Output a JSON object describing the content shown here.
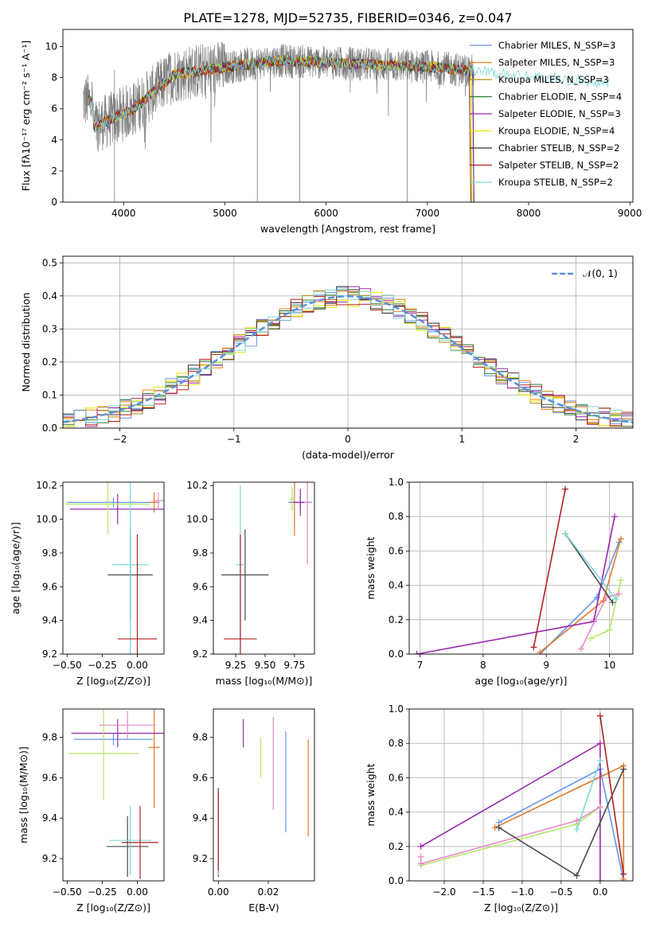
{
  "figure": {
    "title": "PLATE=1278, MJD=52735, FIBERID=0346, z=0.047"
  },
  "colors": {
    "series": [
      "#6495ed",
      "#ff7f0e",
      "#b8860b",
      "#2e7d32",
      "#9c27b0",
      "#e6e600",
      "#333333",
      "#b22222",
      "#7fd8d8"
    ],
    "params": [
      "#6495ed",
      "#e07b2b",
      "#9c27b0",
      "#b5e86b",
      "#e889c8",
      "#4a4a4a",
      "#7fd8d8",
      "#b22222"
    ],
    "obs": "#808080"
  },
  "chart_data": [
    {
      "id": "spectrum",
      "type": "line",
      "xlabel": "wavelength [Angstrom, rest frame]",
      "ylabel": "Flux [fλ10⁻¹⁷ erg cm⁻² s⁻¹ A⁻¹]",
      "xlim": [
        3400,
        9030
      ],
      "ylim": [
        0,
        11.1
      ],
      "xticks": [
        "4000",
        "5000",
        "6000",
        "7000",
        "8000",
        "9000"
      ],
      "yticks": [
        "0",
        "2",
        "4",
        "6",
        "8",
        "10"
      ],
      "legend_position": "upper-right",
      "series": [
        {
          "name": "Chabrier MILES, N_SSP=3"
        },
        {
          "name": "Salpeter MILES, N_SSP=3"
        },
        {
          "name": "Kroupa MILES, N_SSP=3"
        },
        {
          "name": "Chabrier ELODIE, N_SSP=4"
        },
        {
          "name": "Salpeter ELODIE, N_SSP=3"
        },
        {
          "name": "Kroupa ELODIE, N_SSP=4"
        },
        {
          "name": "Chabrier STELIB, N_SSP=2"
        },
        {
          "name": "Salpeter STELIB, N_SSP=2"
        },
        {
          "name": "Kroupa STELIB, N_SSP=2"
        }
      ],
      "grid": false
    },
    {
      "id": "residuals",
      "type": "bar",
      "xlabel": "(data-model)/error",
      "ylabel": "Normed distribution",
      "xlim": [
        -2.5,
        2.5
      ],
      "ylim": [
        0,
        0.52
      ],
      "xticks": [
        "−2",
        "−1",
        "0",
        "1",
        "2"
      ],
      "yticks": [
        "0.0",
        "0.1",
        "0.2",
        "0.3",
        "0.4",
        "0.5"
      ],
      "legend": "𝒩(0, 1)",
      "legend_position": "upper-right",
      "grid": true
    },
    {
      "id": "age_vs_Z",
      "type": "scatter",
      "xlabel": "Z [log₁₀(Z/Z⊙)]",
      "ylabel": "age  [log₁₀(age/yr)]",
      "xlim": [
        -0.53,
        0.19
      ],
      "ylim": [
        9.2,
        10.22
      ],
      "xticks": [
        "−0.50",
        "−0.25",
        "0.00"
      ],
      "yticks": [
        "9.2",
        "9.4",
        "9.6",
        "9.8",
        "10.0",
        "10.2"
      ],
      "points": [
        {
          "x": -0.17,
          "xerr": 0.33,
          "y": 10.1,
          "yerr": 0.03
        },
        {
          "x": 0.12,
          "xerr": 0.03,
          "y": 10.1,
          "yerr": 0.06
        },
        {
          "x": -0.14,
          "xerr": 0.34,
          "y": 10.06,
          "yerr": 0.09
        },
        {
          "x": -0.21,
          "xerr": 0.3,
          "y": 10.09,
          "yerr": 0.18
        },
        {
          "x": 0.15,
          "xerr": 0.04,
          "y": 10.11,
          "yerr": 0.05
        },
        {
          "x": -0.05,
          "xerr": 0.16,
          "y": 9.67,
          "yerr": 0.27
        },
        {
          "x": -0.05,
          "xerr": 0.13,
          "y": 9.73,
          "yerr": 0.55
        },
        {
          "x": 0.0,
          "xerr": 0.14,
          "y": 9.29,
          "yerr": 0.62
        }
      ]
    },
    {
      "id": "age_vs_mass",
      "type": "scatter",
      "xlabel": "mass [log₁₀(M/M⊙)]",
      "ylabel": "",
      "xlim": [
        9.06,
        9.92
      ],
      "ylim": [
        9.2,
        10.22
      ],
      "xticks": [
        "9.25",
        "9.50",
        "9.75"
      ],
      "yticks": [
        "9.2",
        "9.4",
        "9.6",
        "9.8",
        "10.0",
        "10.2"
      ],
      "points": [
        {
          "x": 9.8,
          "xerr": 0.1,
          "y": 10.1,
          "yerr": 0.04
        },
        {
          "x": 9.75,
          "xerr": 0.02,
          "y": 10.1,
          "yerr": 0.2
        },
        {
          "x": 9.8,
          "xerr": 0.08,
          "y": 10.1,
          "yerr": 0.08
        },
        {
          "x": 9.73,
          "xerr": 0.02,
          "y": 10.12,
          "yerr": 0.07
        },
        {
          "x": 9.86,
          "xerr": 0.03,
          "y": 10.1,
          "yerr": 0.37
        },
        {
          "x": 9.33,
          "xerr": 0.2,
          "y": 9.67,
          "yerr": 0.27
        },
        {
          "x": 9.29,
          "xerr": 0.04,
          "y": 9.73,
          "yerr": 0.47
        },
        {
          "x": 9.29,
          "xerr": 0.14,
          "y": 9.29,
          "yerr": 0.62
        }
      ]
    },
    {
      "id": "weight_vs_age",
      "type": "line",
      "xlabel": "age  [log₁₀(age/yr)]",
      "ylabel": "mass weight",
      "xlim": [
        6.83,
        10.37
      ],
      "ylim": [
        0,
        1.0
      ],
      "xticks": [
        "7",
        "8",
        "9",
        "10"
      ],
      "yticks": [
        "0.0",
        "0.2",
        "0.4",
        "0.6",
        "0.8",
        "1.0"
      ],
      "grid": true,
      "series": [
        {
          "x": [
            8.9,
            9.8,
            10.15
          ],
          "y": [
            0.0,
            0.33,
            0.65
          ]
        },
        {
          "x": [
            8.9,
            9.9,
            10.18
          ],
          "y": [
            0.01,
            0.31,
            0.67
          ]
        },
        {
          "x": [
            6.95,
            9.75,
            10.08
          ],
          "y": [
            0.0,
            0.19,
            0.8
          ]
        },
        {
          "x": [
            9.7,
            10.0,
            10.18
          ],
          "y": [
            0.09,
            0.14,
            0.43
          ]
        },
        {
          "x": [
            9.55,
            9.95,
            10.15
          ],
          "y": [
            0.03,
            0.33,
            0.35
          ]
        },
        {
          "x": [
            9.3,
            10.05
          ],
          "y": [
            0.7,
            0.3
          ]
        },
        {
          "x": [
            9.3,
            10.1
          ],
          "y": [
            0.7,
            0.32
          ]
        },
        {
          "x": [
            8.8,
            9.3
          ],
          "y": [
            0.04,
            0.96
          ]
        }
      ]
    },
    {
      "id": "mass_vs_Z",
      "type": "scatter",
      "xlabel": "Z [log₁₀(Z/Z⊙)]",
      "ylabel": "mass [log₁₀(M/M⊙)]",
      "xlim": [
        -0.53,
        0.19
      ],
      "ylim": [
        9.09,
        9.94
      ],
      "xticks": [
        "−0.50",
        "−0.25",
        "0.00"
      ],
      "yticks": [
        "9.2",
        "9.4",
        "9.6",
        "9.8"
      ],
      "points": [
        {
          "x": -0.17,
          "xerr": 0.28,
          "y": 9.79,
          "yerr": 0.03
        },
        {
          "x": 0.12,
          "xerr": 0.04,
          "y": 9.75,
          "yerr": 0.3
        },
        {
          "x": -0.14,
          "xerr": 0.33,
          "y": 9.82,
          "yerr": 0.07
        },
        {
          "x": -0.24,
          "xerr": 0.25,
          "y": 9.72,
          "yerr": 0.23
        },
        {
          "x": -0.07,
          "xerr": 0.2,
          "y": 9.86,
          "yerr": 0.07
        },
        {
          "x": -0.07,
          "xerr": 0.15,
          "y": 9.26,
          "yerr": 0.15
        },
        {
          "x": -0.05,
          "xerr": 0.15,
          "y": 9.29,
          "yerr": 0.17
        },
        {
          "x": 0.02,
          "xerr": 0.13,
          "y": 9.28,
          "yerr": 0.18
        }
      ]
    },
    {
      "id": "mass_vs_ebv",
      "type": "scatter",
      "xlabel": "E(B-V)",
      "ylabel": "",
      "xlim": [
        -0.002,
        0.0385
      ],
      "ylim": [
        9.09,
        9.94
      ],
      "xticks": [
        "0.00",
        "0.02"
      ],
      "yticks": [
        "9.2",
        "9.4",
        "9.6",
        "9.8"
      ],
      "points": [
        {
          "x": 0.027,
          "y": 9.58,
          "yerr": 0.25
        },
        {
          "x": 0.036,
          "y": 9.55,
          "yerr": 0.24
        },
        {
          "x": 0.01,
          "y": 9.82,
          "yerr": 0.07
        },
        {
          "x": 0.017,
          "y": 9.7,
          "yerr": 0.1
        },
        {
          "x": 0.022,
          "y": 9.67,
          "yerr": 0.23
        },
        {
          "x": 0.0,
          "y": 9.33,
          "yerr": 0.22
        },
        {
          "x": 0.0,
          "y": 9.31,
          "yerr": 0.19
        },
        {
          "x": 0.0,
          "y": 9.34,
          "yerr": 0.2
        }
      ]
    },
    {
      "id": "weight_vs_Z",
      "type": "line",
      "xlabel": "Z [log₁₀(Z/Z⊙)]",
      "ylabel": "mass weight",
      "xlim": [
        -2.45,
        0.42
      ],
      "ylim": [
        0,
        1.0
      ],
      "xticks": [
        "−2.0",
        "−1.5",
        "−1.0",
        "−0.5",
        "0.0"
      ],
      "yticks": [
        "0.0",
        "0.2",
        "0.4",
        "0.6",
        "0.8",
        "1.0"
      ],
      "grid": true,
      "series": [
        {
          "x": [
            -1.3,
            0.0,
            0.3
          ],
          "y": [
            0.34,
            0.65,
            0.0
          ]
        },
        {
          "x": [
            -1.35,
            0.3,
            0.3
          ],
          "y": [
            0.31,
            0.67,
            0.01
          ]
        },
        {
          "x": [
            -2.3,
            0.0,
            0.0
          ],
          "y": [
            0.2,
            0.8,
            0.0
          ]
        },
        {
          "x": [
            -2.3,
            -0.3,
            0.0
          ],
          "y": [
            0.09,
            0.33,
            0.43
          ]
        },
        {
          "x": [
            -2.3,
            -2.3,
            -0.3,
            0.0
          ],
          "y": [
            0.14,
            0.1,
            0.35,
            0.43
          ]
        },
        {
          "x": [
            -1.3,
            -0.3,
            0.3
          ],
          "y": [
            0.31,
            0.03,
            0.65
          ]
        },
        {
          "x": [
            -0.3,
            0.0
          ],
          "y": [
            0.3,
            0.7
          ]
        },
        {
          "x": [
            0.0,
            0.3
          ],
          "y": [
            0.96,
            0.04
          ]
        }
      ]
    }
  ]
}
